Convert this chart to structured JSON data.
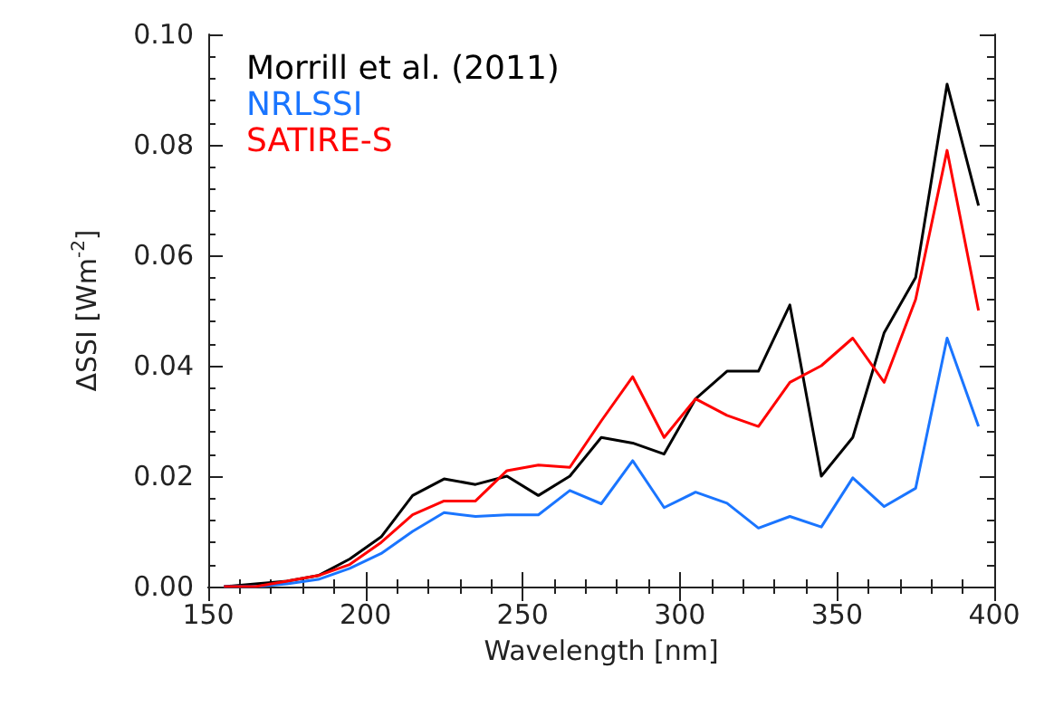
{
  "chart_data": {
    "type": "line",
    "xlabel": "Wavelength [nm]",
    "ylabel": "ΔSSI [Wm$^{-2}$]",
    "x": [
      155,
      165,
      175,
      185,
      195,
      205,
      215,
      225,
      235,
      245,
      255,
      265,
      275,
      285,
      295,
      305,
      315,
      325,
      335,
      345,
      355,
      365,
      375,
      385,
      395
    ],
    "series": [
      {
        "name": "Morrill et al. (2011)",
        "color": "#000000",
        "values": [
          0,
          0.0005,
          0.001,
          0.002,
          0.005,
          0.009,
          0.0165,
          0.0195,
          0.0185,
          0.02,
          0.0165,
          0.02,
          0.027,
          0.026,
          0.024,
          0.034,
          0.039,
          0.039,
          0.051,
          0.02,
          0.027,
          0.046,
          0.056,
          0.091,
          0.069
        ]
      },
      {
        "name": "NRLSSI",
        "color": "#1a75ff",
        "values": [
          0,
          0,
          0.0005,
          0.0013,
          0.0033,
          0.006,
          0.01,
          0.0134,
          0.0127,
          0.013,
          0.013,
          0.0174,
          0.015,
          0.0228,
          0.0143,
          0.0171,
          0.0151,
          0.0106,
          0.0127,
          0.0108,
          0.0197,
          0.0145,
          0.0178,
          0.045,
          0.029
        ]
      },
      {
        "name": "SATIRE-S",
        "color": "#ff0000",
        "values": [
          0,
          0,
          0.001,
          0.002,
          0.004,
          0.008,
          0.013,
          0.0155,
          0.0155,
          0.021,
          0.022,
          0.0216,
          0.03,
          0.038,
          0.027,
          0.034,
          0.031,
          0.029,
          0.037,
          0.04,
          0.045,
          0.037,
          0.052,
          0.079,
          0.05
        ]
      }
    ],
    "xlim": [
      150,
      400
    ],
    "xticks": [
      150,
      200,
      250,
      300,
      350,
      400
    ],
    "ylim": [
      0,
      0.1
    ],
    "yticks": [
      {
        "value": 0,
        "label": "0.00"
      },
      {
        "value": 0.02,
        "label": "0.02"
      },
      {
        "value": 0.04,
        "label": "0.04"
      },
      {
        "value": 0.06,
        "label": "0.06"
      },
      {
        "value": 0.08,
        "label": "0.08"
      },
      {
        "value": 0.1,
        "label": "0.10"
      }
    ],
    "grid": false,
    "legend": "top left",
    "marker": "none",
    "line_style": "solid"
  }
}
